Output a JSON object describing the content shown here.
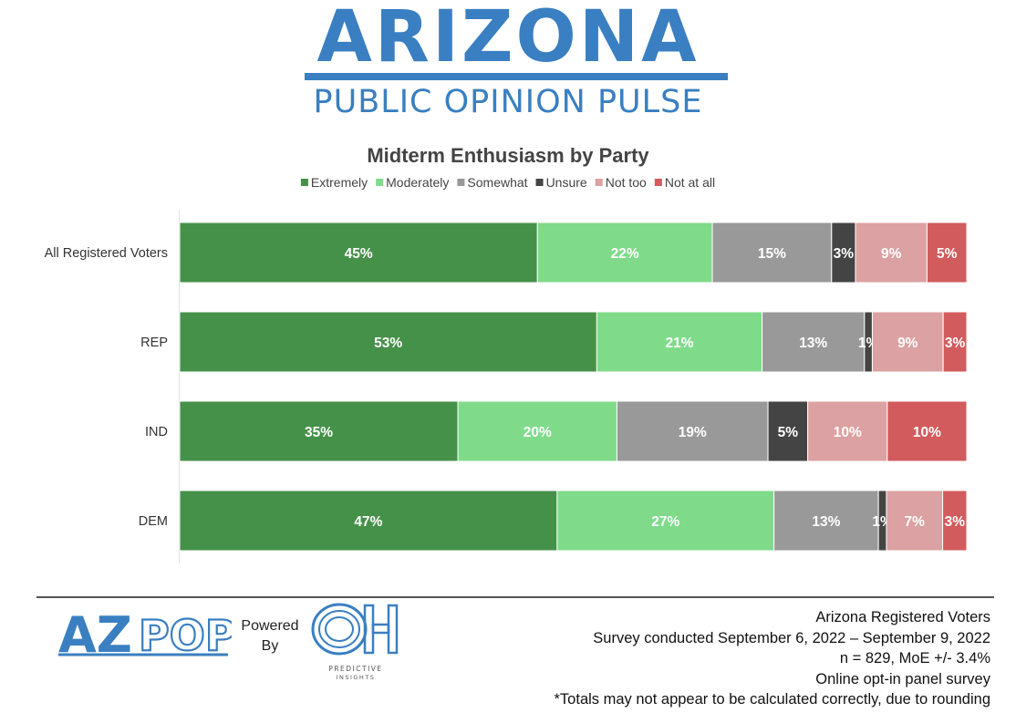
{
  "header": {
    "brand_title": "ARIZONA",
    "brand_subtitle": "PUBLIC OPINION PULSE"
  },
  "chart_data": {
    "type": "bar",
    "orientation": "horizontal",
    "stacked": true,
    "title": "Midterm Enthusiasm by Party",
    "categories": [
      "All Registered Voters",
      "REP",
      "IND",
      "DEM"
    ],
    "series": [
      {
        "name": "Extremely",
        "color": "#46914a",
        "values": [
          45,
          53,
          35,
          47
        ]
      },
      {
        "name": "Moderately",
        "color": "#7fdb8a",
        "values": [
          22,
          21,
          20,
          27
        ]
      },
      {
        "name": "Somewhat",
        "color": "#999999",
        "values": [
          15,
          13,
          19,
          13
        ]
      },
      {
        "name": "Unsure",
        "color": "#444444",
        "values": [
          3,
          1,
          5,
          1
        ]
      },
      {
        "name": "Not too",
        "color": "#dca1a2",
        "values": [
          9,
          9,
          10,
          7
        ]
      },
      {
        "name": "Not at all",
        "color": "#d15b5d",
        "values": [
          5,
          3,
          10,
          3
        ]
      }
    ],
    "value_suffix": "%",
    "legend_position": "top",
    "grid": false
  },
  "footer": {
    "logo_text": "AZPOP",
    "powered_by_line1": "Powered",
    "powered_by_line2": "By",
    "partner_logo_text": "OH",
    "partner_caption": "PREDICTIVE INSIGHTS",
    "survey_lines": [
      "Arizona Registered Voters",
      "Survey conducted September 6, 2022 – September 9, 2022",
      "n = 829, MoE +/- 3.4%",
      "Online opt-in panel survey",
      "*Totals may not appear to be calculated correctly, due to rounding"
    ]
  }
}
